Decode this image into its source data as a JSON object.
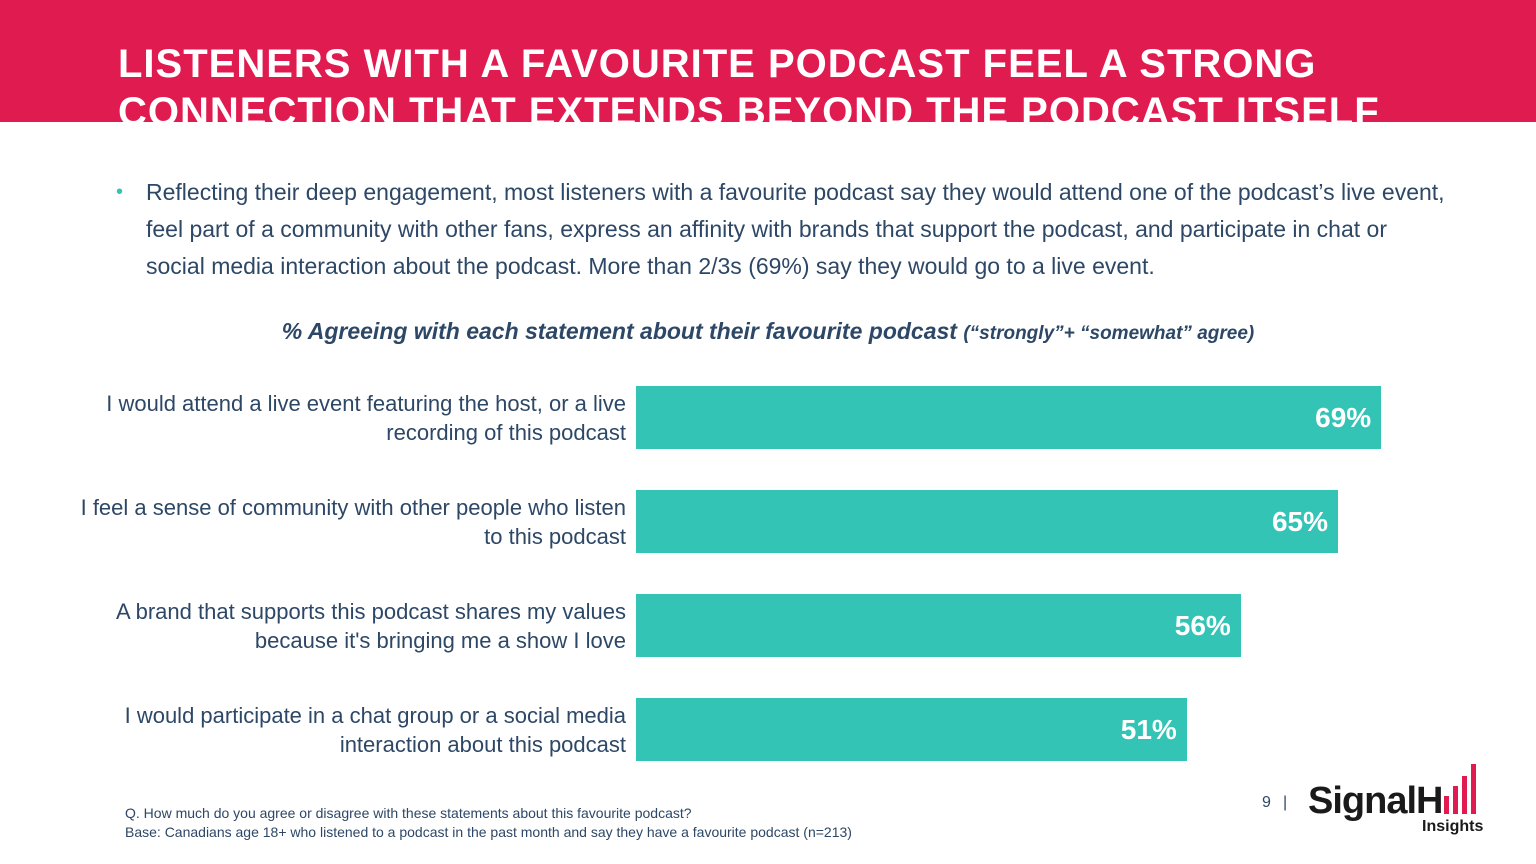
{
  "header": {
    "title": "LISTENERS WITH A FAVOURITE PODCAST FEEL A STRONG CONNECTION THAT EXTENDS BEYOND THE PODCAST ITSELF",
    "bg_color": "#e01b4f"
  },
  "bullet": {
    "text": "Reflecting their deep engagement, most listeners with a favourite podcast say they would attend one of the podcast’s live event, feel part of a community with other fans, express an affinity with brands that support the podcast, and participate in chat or social media interaction about the podcast. More than 2/3s (69%) say they would go to a live event."
  },
  "chart_data": {
    "type": "bar",
    "orientation": "horizontal",
    "title": "% Agreeing with each statement about their favourite podcast",
    "subtitle": "(“strongly”+ “somewhat” agree)",
    "categories": [
      "I would attend a live event featuring the host, or a live recording of this podcast",
      "I feel a sense of community with other people who listen to this podcast",
      "A brand that supports this podcast shares my values because it's bringing me a show I love",
      "I would participate in a chat group or a social media interaction about this podcast"
    ],
    "values": [
      69,
      65,
      56,
      51
    ],
    "value_labels": [
      "69%",
      "65%",
      "56%",
      "51%"
    ],
    "xlim": [
      0,
      100
    ],
    "bar_color": "#33c4b5",
    "grid": false
  },
  "footnote": {
    "question": "Q. How much do you agree or disagree with these statements about this favourite podcast?",
    "base": "Base: Canadians  age 18+ who listened to a podcast in the past month and say they have a favourite podcast (n=213)"
  },
  "page": {
    "number": "9",
    "separator": "|"
  },
  "logo": {
    "name": "SignalHill",
    "word_visible": "SignalH",
    "sub": "Insights",
    "accent_color": "#e01b4f"
  }
}
